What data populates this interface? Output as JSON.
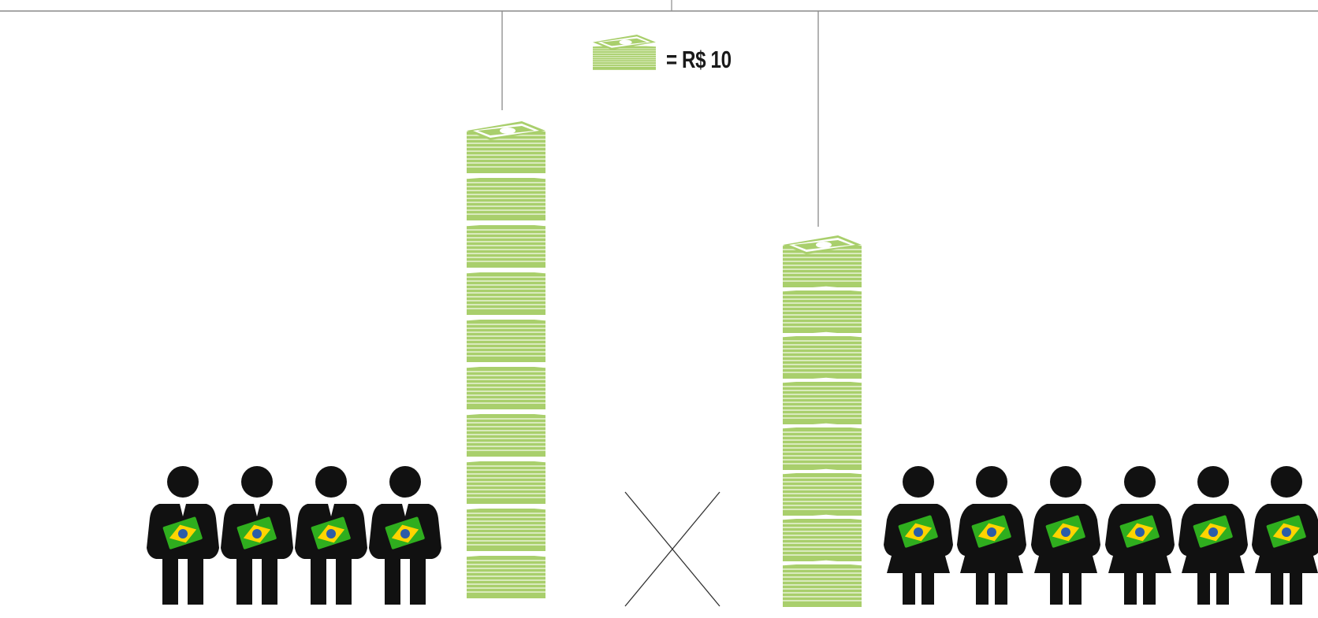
{
  "legend": {
    "label": "= R$ 10",
    "icon": "money-stack-icon"
  },
  "colors": {
    "money": "#a9cf6c",
    "money_dark": "#7ea548",
    "money_light": "#d9ecb9",
    "person": "#111111",
    "bill_green": "#2fae1e",
    "bill_yellow": "#ffd400",
    "bill_blue": "#2b5da8",
    "line": "#8a8a8a"
  },
  "groups": [
    {
      "id": "men",
      "figure": "man-icon",
      "count": 4,
      "stack_blocks": 10
    },
    {
      "id": "women",
      "figure": "woman-icon",
      "count": 6,
      "stack_blocks": 8
    }
  ],
  "comparison_symbol": "x-mark-icon"
}
